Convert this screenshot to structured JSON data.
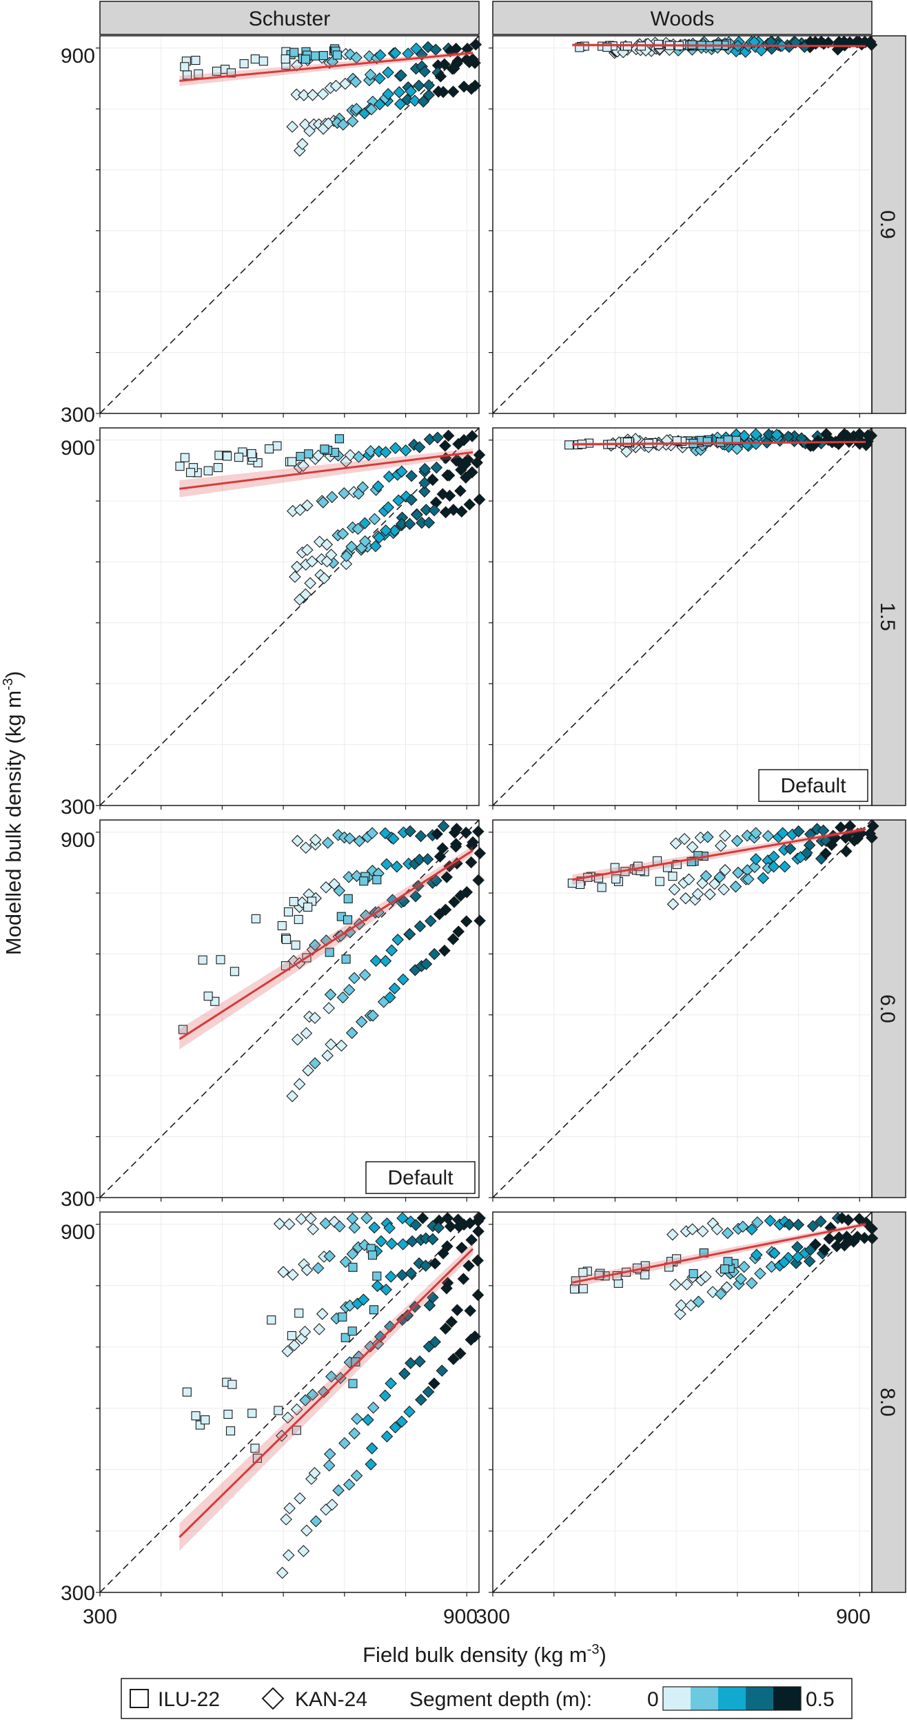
{
  "strip_labels": {
    "columns": [
      "Schuster",
      "Woods"
    ],
    "rows": [
      "0.9",
      "1.5",
      "6.0",
      "8.0"
    ]
  },
  "axis": {
    "xlabel_main": "Field bulk density (kg m",
    "xlabel_sup": "-3",
    "xlabel_end": ")",
    "ylabel_main": "Modelled bulk density (kg m",
    "ylabel_sup": "-3",
    "ylabel_end": ")",
    "tick_labels": [
      "300",
      "900"
    ]
  },
  "panel_label": "Default",
  "legend": {
    "marker1_label": "ILU-22",
    "marker2_label": "KAN-24",
    "depth_title": "Segment depth (m):",
    "depth_min": "0",
    "depth_max": "0.5"
  },
  "colors": {
    "fit_line": "#d63a3a",
    "fit_band": "#e05a5a",
    "depth_scale": [
      "#d6f0f7",
      "#6cc9e0",
      "#11a9cf",
      "#0b6a82",
      "#061f26"
    ]
  },
  "chart_data": {
    "type": "scatter",
    "facets": "grid: columns = model, rows = parameter value",
    "xlim": [
      300,
      920
    ],
    "ylim": [
      300,
      920
    ],
    "x_ticks": [
      300,
      400,
      500,
      600,
      700,
      800,
      900
    ],
    "y_ticks": [
      300,
      400,
      500,
      600,
      700,
      800,
      900
    ],
    "reference_line": "y = x (dashed)",
    "markers": {
      "ILU-22": "square",
      "KAN-24": "diamond"
    },
    "color_variable": "Segment depth (m), 0 to 0.5",
    "panels": [
      {
        "column": "Schuster",
        "row": "0.9",
        "fit": {
          "x": [
            430,
            910
          ],
          "y": [
            846,
            892
          ]
        },
        "band_halfwidth": 6,
        "ilu": {
          "x": [
            430,
            690
          ],
          "y": [
            850,
            905
          ]
        },
        "kan": {
          "x": [
            620,
            915
          ],
          "lines": [
            [
              875,
              905
            ],
            [
              820,
              880
            ],
            [
              770,
              840
            ],
            [
              740,
              880
            ]
          ]
        }
      },
      {
        "column": "Woods",
        "row": "0.9",
        "fit": {
          "x": [
            430,
            910
          ],
          "y": [
            905,
            903
          ]
        },
        "band_halfwidth": 2,
        "ilu": {
          "x": [
            420,
            700
          ],
          "y": [
            900,
            908
          ]
        },
        "kan": {
          "x": [
            500,
            915
          ],
          "lines": [
            [
              900,
              912
            ],
            [
              896,
              906
            ],
            [
              904,
              914
            ],
            [
              898,
              910
            ]
          ]
        }
      },
      {
        "column": "Schuster",
        "row": "1.5",
        "fit": {
          "x": [
            430,
            910
          ],
          "y": [
            820,
            880
          ]
        },
        "band_halfwidth": 10,
        "ilu": {
          "x": [
            430,
            700
          ],
          "y": [
            840,
            905
          ]
        },
        "kan": {
          "x": [
            620,
            915
          ],
          "lines": [
            [
              860,
              905
            ],
            [
              780,
              880
            ],
            [
              640,
              840
            ],
            [
              680,
              800
            ],
            [
              700,
              860
            ]
          ]
        }
      },
      {
        "column": "Woods",
        "row": "1.5",
        "fit": {
          "x": [
            430,
            910
          ],
          "y": [
            893,
            897
          ]
        },
        "band_halfwidth": 2,
        "ilu": {
          "x": [
            420,
            700
          ],
          "y": [
            890,
            902
          ]
        },
        "kan": {
          "x": [
            500,
            915
          ],
          "lines": [
            [
              890,
              905
            ],
            [
              896,
              900
            ],
            [
              886,
              902
            ],
            [
              892,
              908
            ]
          ]
        },
        "label": "Default"
      },
      {
        "column": "Schuster",
        "row": "6.0",
        "fit": {
          "x": [
            430,
            910
          ],
          "y": [
            560,
            870
          ]
        },
        "band_halfwidth": 12,
        "ilu": {
          "x": [
            430,
            760
          ],
          "y": [
            560,
            860
          ]
        },
        "kan": {
          "x": [
            620,
            915
          ],
          "lines": [
            [
              880,
              905
            ],
            [
              780,
              890
            ],
            [
              680,
              860
            ],
            [
              560,
              820
            ],
            [
              470,
              760
            ]
          ]
        },
        "label": "Default"
      },
      {
        "column": "Woods",
        "row": "6.0",
        "fit": {
          "x": [
            430,
            910
          ],
          "y": [
            822,
            905
          ]
        },
        "band_halfwidth": 6,
        "ilu": {
          "x": [
            430,
            700
          ],
          "y": [
            800,
            870
          ]
        },
        "kan": {
          "x": [
            600,
            915
          ],
          "lines": [
            [
              880,
              905
            ],
            [
              810,
              900
            ],
            [
              780,
              890
            ]
          ]
        }
      },
      {
        "column": "Schuster",
        "row": "8.0",
        "fit": {
          "x": [
            430,
            910
          ],
          "y": [
            390,
            860
          ]
        },
        "band_halfwidth": 16,
        "ilu": {
          "x": [
            430,
            760
          ],
          "y": [
            400,
            880
          ]
        },
        "kan": {
          "x": [
            600,
            915
          ],
          "lines": [
            [
              900,
              905
            ],
            [
              820,
              900
            ],
            [
              700,
              880
            ],
            [
              560,
              840
            ],
            [
              420,
              780
            ],
            [
              330,
              720
            ]
          ]
        }
      },
      {
        "column": "Woods",
        "row": "8.0",
        "fit": {
          "x": [
            430,
            910
          ],
          "y": [
            805,
            900
          ]
        },
        "band_halfwidth": 6,
        "ilu": {
          "x": [
            430,
            700
          ],
          "y": [
            790,
            870
          ]
        },
        "kan": {
          "x": [
            600,
            915
          ],
          "lines": [
            [
              890,
              905
            ],
            [
              800,
              890
            ],
            [
              760,
              880
            ]
          ]
        }
      }
    ]
  }
}
